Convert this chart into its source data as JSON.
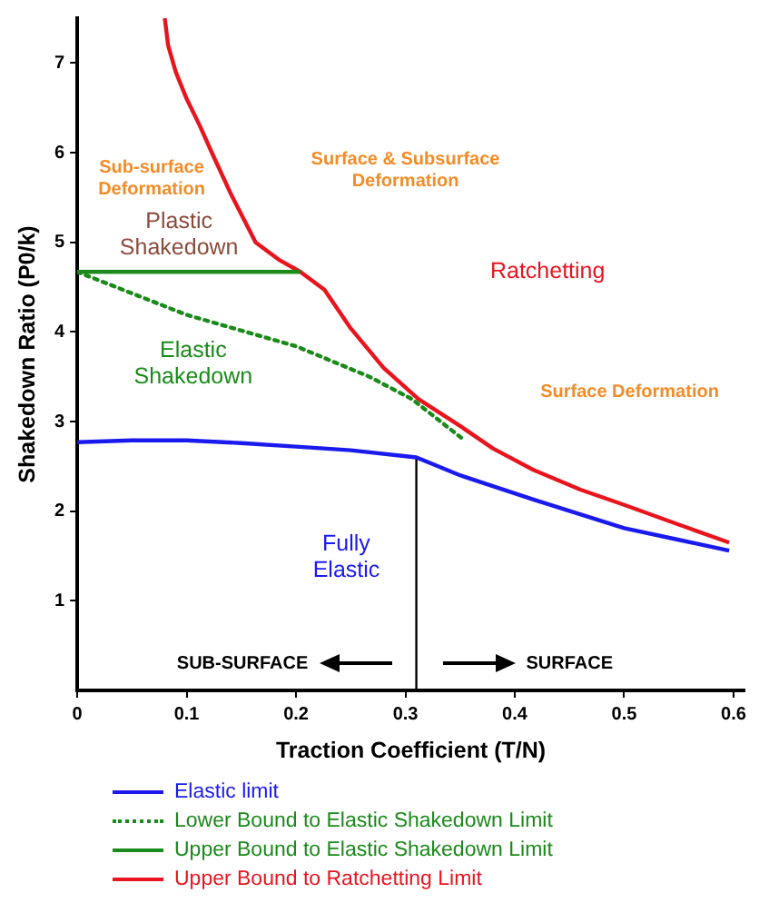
{
  "chart_data": {
    "type": "line",
    "xlabel": "Traction Coefficient (T/N)",
    "ylabel": "Shakedown Ratio (P0/k)",
    "xlim": [
      0,
      0.61
    ],
    "xticks": [
      0,
      0.1,
      0.2,
      0.3,
      0.4,
      0.5,
      0.6
    ],
    "ylim": [
      0,
      7.5
    ],
    "yticks": [
      1,
      2,
      3,
      4,
      5,
      6,
      7
    ],
    "grid": false,
    "legend": "bottom",
    "marker": "none",
    "series": [
      {
        "name": "Elastic limit",
        "color": "#1a1aee",
        "x": [
          0,
          0.05,
          0.1,
          0.15,
          0.2,
          0.25,
          0.31,
          0.35,
          0.417,
          0.5,
          0.55,
          0.596
        ],
        "values": [
          2.77,
          2.79,
          2.79,
          2.76,
          2.72,
          2.68,
          2.6,
          2.4,
          2.13,
          1.81,
          1.68,
          1.56
        ]
      },
      {
        "name": "Lower Bound to Elastic Shakedown Limit",
        "color": "#1a8a1a",
        "line_style": "dotted",
        "x": [
          0,
          0.1,
          0.2,
          0.267,
          0.306,
          0.353
        ],
        "values": [
          4.67,
          4.19,
          3.84,
          3.5,
          3.25,
          2.8
        ]
      },
      {
        "name": "Upper Bound to Elastic Shakedown Limit",
        "color": "#1a8a1a",
        "x": [
          0,
          0.204
        ],
        "values": [
          4.67,
          4.67
        ]
      },
      {
        "name": "Upper Bound to Ratchetting Limit",
        "color": "#e8141e",
        "x": [
          0.08,
          0.083,
          0.09,
          0.1,
          0.112,
          0.123,
          0.14,
          0.163,
          0.185,
          0.204,
          0.226,
          0.25,
          0.28,
          0.312,
          0.35,
          0.38,
          0.417,
          0.46,
          0.5,
          0.55,
          0.596
        ],
        "values": [
          7.5,
          7.2,
          6.9,
          6.6,
          6.3,
          6,
          5.55,
          5,
          4.8,
          4.67,
          4.47,
          4.04,
          3.6,
          3.25,
          2.95,
          2.7,
          2.46,
          2.24,
          2.07,
          1.85,
          1.65
        ]
      },
      {
        "color": "#000000",
        "x": [
          0.31,
          0.31
        ],
        "values": [
          0,
          2.6
        ]
      }
    ],
    "annotations": [
      "Sub-surface\nDeformation",
      "Surface & Subsurface\nDeformation",
      "Plastic\nShakedown",
      "Elastic\nShakedown",
      "Ratchetting",
      "Surface Deformation",
      "Fully\nElastic",
      "SUB-SURFACE",
      "SURFACE"
    ]
  }
}
